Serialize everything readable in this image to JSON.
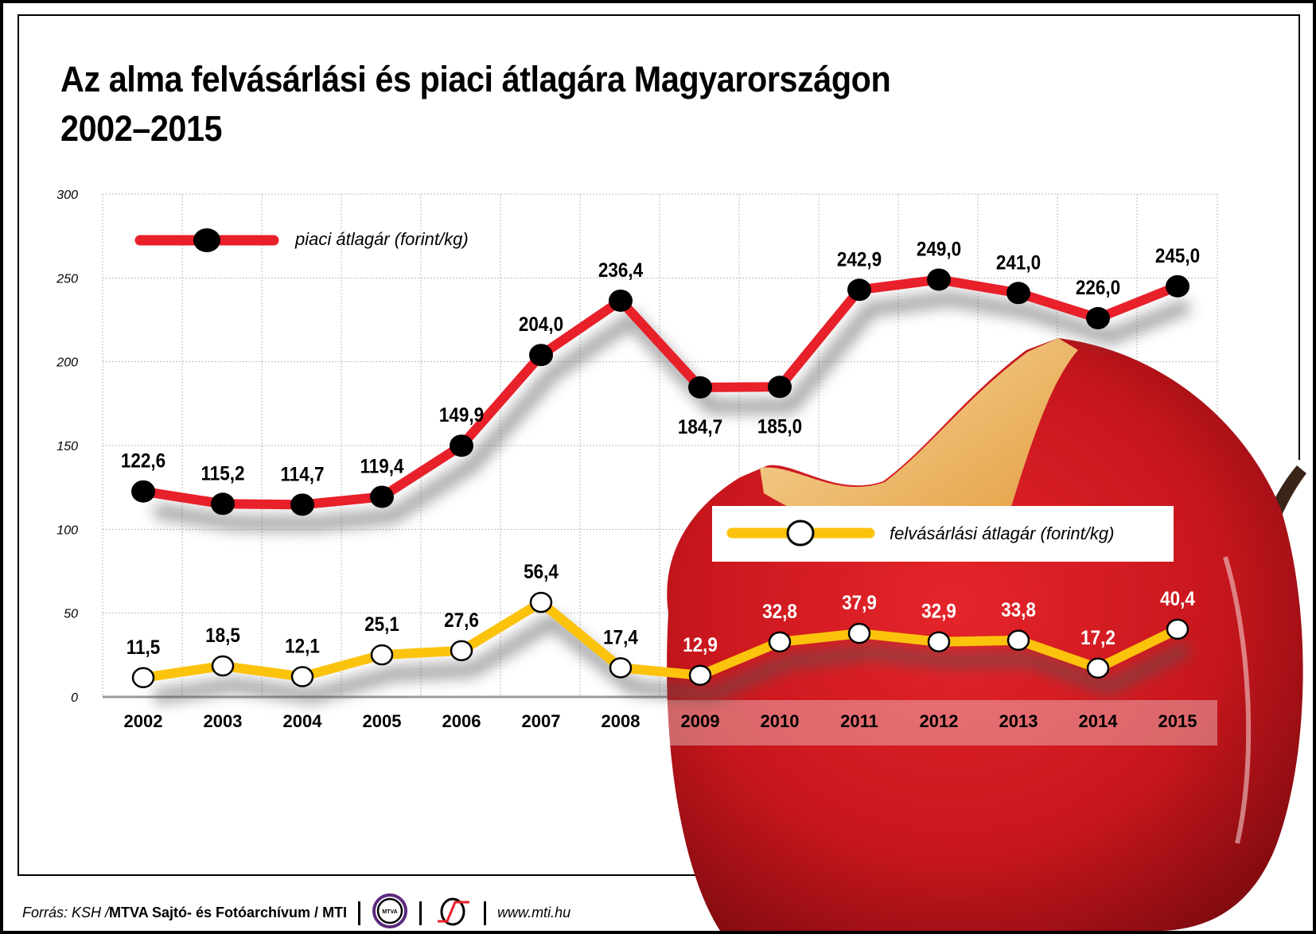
{
  "title_line1": "Az alma felvásárlási és piaci átlagára Magyarországon",
  "title_line2": "2002–2015",
  "footer": {
    "source_prefix": "Forrás: KSH / ",
    "source_bold": "MTVA Sajtó- és Fotóarchívum / MTI",
    "logo1_text": "MTVA",
    "website": "www.mti.hu"
  },
  "colors": {
    "red": "#e8202a",
    "yellow": "#fcc30c",
    "apple": "#c8161d",
    "flesh": "#f0b567"
  },
  "chart_data": {
    "type": "line",
    "title": "Az alma felvásárlási és piaci átlagára Magyarországon 2002–2015",
    "xlabel": "",
    "ylabel": "",
    "x": [
      "2002",
      "2003",
      "2004",
      "2005",
      "2006",
      "2007",
      "2008",
      "2009",
      "2010",
      "2011",
      "2012",
      "2013",
      "2014",
      "2015"
    ],
    "ylim": [
      0,
      300
    ],
    "yticks": [
      0,
      50,
      100,
      150,
      200,
      250,
      300
    ],
    "grid": true,
    "series": [
      {
        "name": "piaci átlagár (forint/kg)",
        "color": "#e8202a",
        "marker": "filled-black",
        "values": [
          122.6,
          115.2,
          114.7,
          119.4,
          149.9,
          204.0,
          236.4,
          184.7,
          185.0,
          242.9,
          249.0,
          241.0,
          226.0,
          245.0
        ],
        "labels": [
          "122,6",
          "115,2",
          "114,7",
          "119,4",
          "149,9",
          "204,0",
          "236,4",
          "184,7",
          "185,0",
          "242,9",
          "249,0",
          "241,0",
          "226,0",
          "245,0"
        ]
      },
      {
        "name": "felvásárlási átlagár (forint/kg)",
        "color": "#fcc30c",
        "marker": "open-white",
        "values": [
          11.5,
          18.5,
          12.1,
          25.1,
          27.6,
          56.4,
          17.4,
          12.9,
          32.8,
          37.9,
          32.9,
          33.8,
          17.2,
          40.4
        ],
        "labels": [
          "11,5",
          "18,5",
          "12,1",
          "25,1",
          "27,6",
          "56,4",
          "17,4",
          "12,9",
          "32,8",
          "37,9",
          "32,9",
          "33,8",
          "17,2",
          "40,4"
        ]
      }
    ],
    "legend": [
      "piaci átlagár (forint/kg)",
      "felvásárlási átlagár (forint/kg)"
    ]
  }
}
